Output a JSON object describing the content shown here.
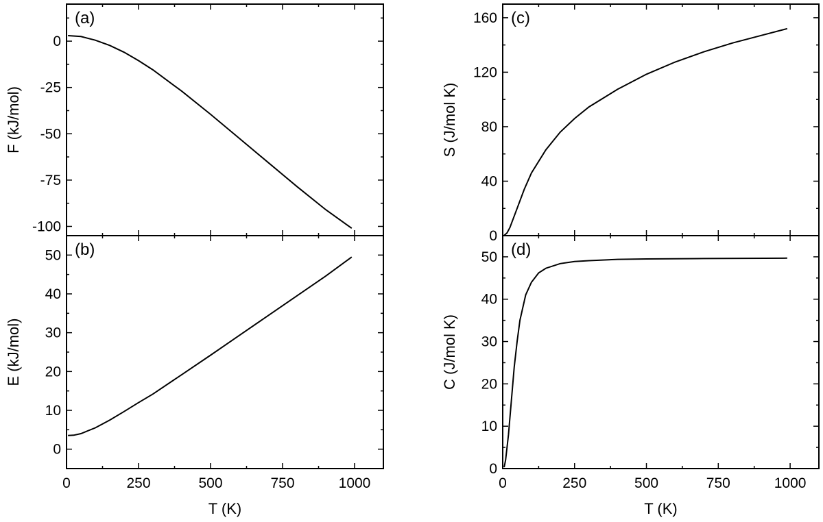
{
  "chart_data": [
    {
      "panel": "(a)",
      "type": "line",
      "xlabel": "",
      "ylabel": "F  (kJ/mol)",
      "xlim": [
        0,
        1100
      ],
      "ylim": [
        -105,
        20
      ],
      "xticks": [
        0,
        250,
        500,
        750,
        1000
      ],
      "xtick_labels": [],
      "yticks": [
        0,
        -25,
        -50,
        -75,
        -100
      ],
      "ytick_labels": [
        "0",
        "-25",
        "-50",
        "-75",
        "-100"
      ],
      "x": [
        5,
        50,
        100,
        150,
        200,
        250,
        300,
        400,
        500,
        600,
        700,
        800,
        900,
        990
      ],
      "y": [
        3,
        2.5,
        0.5,
        -2.3,
        -6,
        -10.5,
        -15.5,
        -27,
        -39.5,
        -52.5,
        -65.5,
        -78.5,
        -91,
        -101
      ]
    },
    {
      "panel": "(b)",
      "type": "line",
      "xlabel": "T  (K)",
      "ylabel": "E  (kJ/mol)",
      "xlim": [
        0,
        1100
      ],
      "ylim": [
        -5,
        55
      ],
      "xticks": [
        0,
        250,
        500,
        750,
        1000
      ],
      "xtick_labels": [
        "0",
        "250",
        "500",
        "750",
        "1000"
      ],
      "yticks": [
        0,
        10,
        20,
        30,
        40,
        50
      ],
      "ytick_labels": [
        "0",
        "10",
        "20",
        "30",
        "40",
        "50"
      ],
      "x": [
        5,
        25,
        50,
        100,
        150,
        200,
        250,
        300,
        400,
        500,
        600,
        700,
        800,
        900,
        990
      ],
      "y": [
        3.5,
        3.6,
        4.0,
        5.5,
        7.5,
        9.7,
        12,
        14.2,
        19.2,
        24.2,
        29.3,
        34.4,
        39.5,
        44.6,
        49.5
      ]
    },
    {
      "panel": "(c)",
      "type": "line",
      "xlabel": "",
      "ylabel": "S  (J/mol K)",
      "xlim": [
        0,
        1100
      ],
      "ylim": [
        0,
        170
      ],
      "xticks": [
        0,
        250,
        500,
        750,
        1000
      ],
      "xtick_labels": [],
      "yticks": [
        0,
        40,
        80,
        120,
        160
      ],
      "ytick_labels": [
        "0",
        "40",
        "80",
        "120",
        "160"
      ],
      "x": [
        5,
        15,
        25,
        50,
        75,
        100,
        150,
        200,
        250,
        300,
        400,
        500,
        600,
        700,
        800,
        900,
        990
      ],
      "y": [
        0.2,
        2,
        6,
        20,
        34,
        46,
        63,
        76,
        86,
        94.5,
        107.5,
        118.5,
        127.5,
        135,
        141.5,
        147,
        152
      ]
    },
    {
      "panel": "(d)",
      "type": "line",
      "xlabel": "T  (K)",
      "ylabel": "C  (J/mol K)",
      "xlim": [
        0,
        1100
      ],
      "ylim": [
        0,
        55
      ],
      "xticks": [
        0,
        250,
        500,
        750,
        1000
      ],
      "xtick_labels": [
        "0",
        "250",
        "500",
        "750",
        "1000"
      ],
      "yticks": [
        0,
        10,
        20,
        30,
        40,
        50
      ],
      "ytick_labels": [
        "0",
        "10",
        "20",
        "30",
        "40",
        "50"
      ],
      "x": [
        5,
        10,
        20,
        30,
        40,
        50,
        60,
        80,
        100,
        125,
        150,
        200,
        250,
        300,
        400,
        500,
        700,
        990
      ],
      "y": [
        0.3,
        2,
        8,
        16,
        24,
        30,
        35,
        41,
        44,
        46.2,
        47.3,
        48.4,
        48.9,
        49.1,
        49.4,
        49.5,
        49.6,
        49.7
      ]
    }
  ]
}
